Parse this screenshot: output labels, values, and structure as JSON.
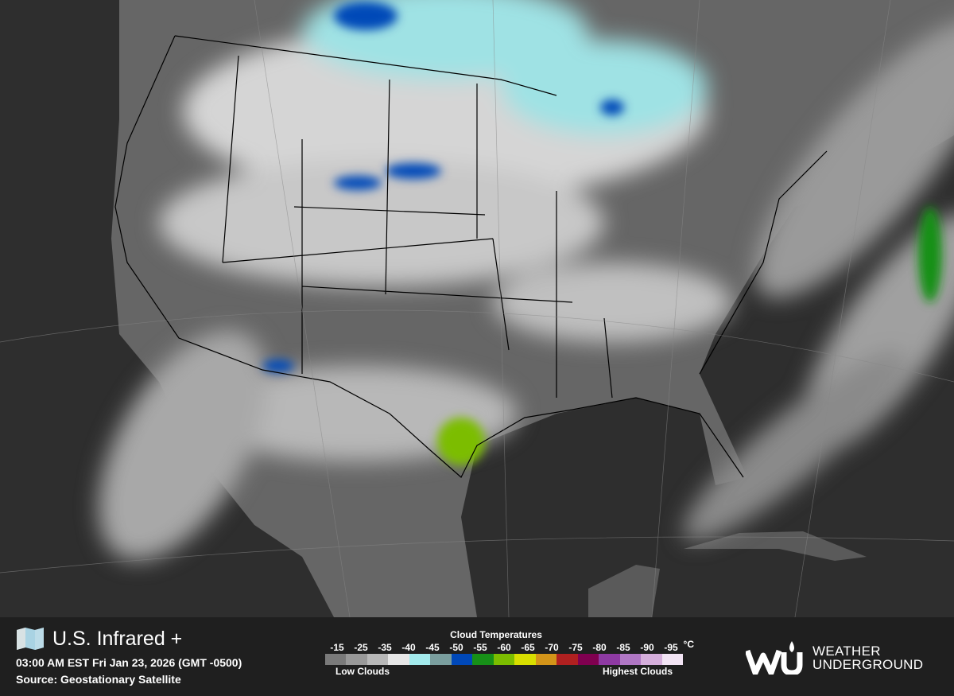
{
  "map": {
    "region": "United States",
    "layer": "infrared satellite",
    "colors": {
      "ocean": "#2e2e2e",
      "land": "#6a6a6a",
      "cloud": "#d8d8d8",
      "cold_cloud": "#9fe6ea",
      "borders": "#000000"
    }
  },
  "footer": {
    "icon": "map-icon",
    "title": "U.S. Infrared +",
    "timestamp": "03:00 AM EST Fri Jan 23, 2026 (GMT -0500)",
    "source": "Source: Geostationary Satellite"
  },
  "legend": {
    "title": "Cloud Temperatures",
    "unit": "°C",
    "labels": [
      "-15",
      "-25",
      "-35",
      "-40",
      "-45",
      "-50",
      "-55",
      "-60",
      "-65",
      "-70",
      "-75",
      "-80",
      "-85",
      "-90",
      "-95"
    ],
    "swatches": [
      "#7a7a7a",
      "#999999",
      "#b8b8b8",
      "#e6e6e6",
      "#a3eaec",
      "#7a9e9e",
      "#0048b8",
      "#179018",
      "#7cbd00",
      "#d8de00",
      "#d39419",
      "#b02020",
      "#800050",
      "#8e3aa3",
      "#b077c4",
      "#d5aedb",
      "#f2e4f4"
    ],
    "low_label": "Low Clouds",
    "high_label": "Highest Clouds"
  },
  "brand": {
    "logo_text_line1": "WEATHER",
    "logo_text_line2": "UNDERGROUND"
  }
}
